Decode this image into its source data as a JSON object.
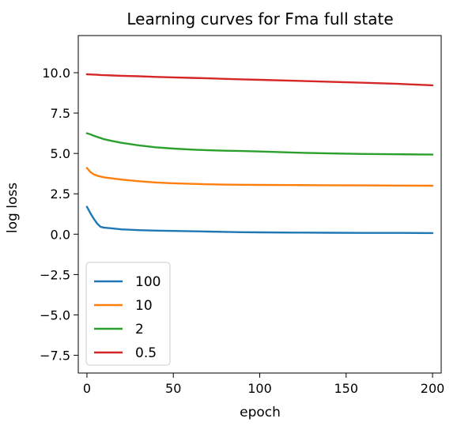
{
  "chart_data": {
    "type": "line",
    "title": "Learning curves for Fma full state",
    "xlabel": "epoch",
    "ylabel": "log loss",
    "xlim": [
      -5,
      205
    ],
    "ylim": [
      -8.6,
      12.3
    ],
    "xticks": [
      0,
      50,
      100,
      150,
      200
    ],
    "yticks": [
      10.0,
      7.5,
      5.0,
      2.5,
      0.0,
      -2.5,
      -5.0,
      -7.5
    ],
    "xtick_labels": [
      "0",
      "50",
      "100",
      "150",
      "200"
    ],
    "ytick_labels": [
      "10.0",
      "7.5",
      "5.0",
      "2.5",
      "0.0",
      "−2.5",
      "−5.0",
      "−7.5"
    ],
    "grid": false,
    "legend": "lower-left",
    "x": [
      0,
      2,
      4,
      6,
      8,
      10,
      15,
      20,
      30,
      40,
      50,
      60,
      70,
      80,
      90,
      100,
      120,
      140,
      160,
      180,
      200
    ],
    "series": [
      {
        "name": "100",
        "color": "#1f77b4",
        "values": [
          1.7,
          1.3,
          0.95,
          0.65,
          0.45,
          0.4,
          0.35,
          0.3,
          0.25,
          0.22,
          0.2,
          0.18,
          0.16,
          0.14,
          0.12,
          0.11,
          0.1,
          0.09,
          0.08,
          0.08,
          0.07
        ]
      },
      {
        "name": "10",
        "color": "#ff7f0e",
        "values": [
          4.1,
          3.85,
          3.7,
          3.62,
          3.57,
          3.52,
          3.45,
          3.38,
          3.28,
          3.2,
          3.15,
          3.12,
          3.09,
          3.07,
          3.06,
          3.05,
          3.04,
          3.03,
          3.02,
          3.01,
          3.0
        ]
      },
      {
        "name": "2",
        "color": "#2ca02c",
        "values": [
          6.25,
          6.18,
          6.1,
          6.02,
          5.95,
          5.88,
          5.76,
          5.66,
          5.5,
          5.38,
          5.3,
          5.24,
          5.2,
          5.17,
          5.15,
          5.12,
          5.05,
          5.0,
          4.97,
          4.95,
          4.93
        ]
      },
      {
        "name": "0.5",
        "color": "#d62728",
        "values": [
          9.9,
          9.89,
          9.88,
          9.87,
          9.86,
          9.85,
          9.83,
          9.81,
          9.78,
          9.74,
          9.71,
          9.68,
          9.65,
          9.62,
          9.59,
          9.56,
          9.5,
          9.44,
          9.38,
          9.31,
          9.22
        ]
      }
    ]
  }
}
